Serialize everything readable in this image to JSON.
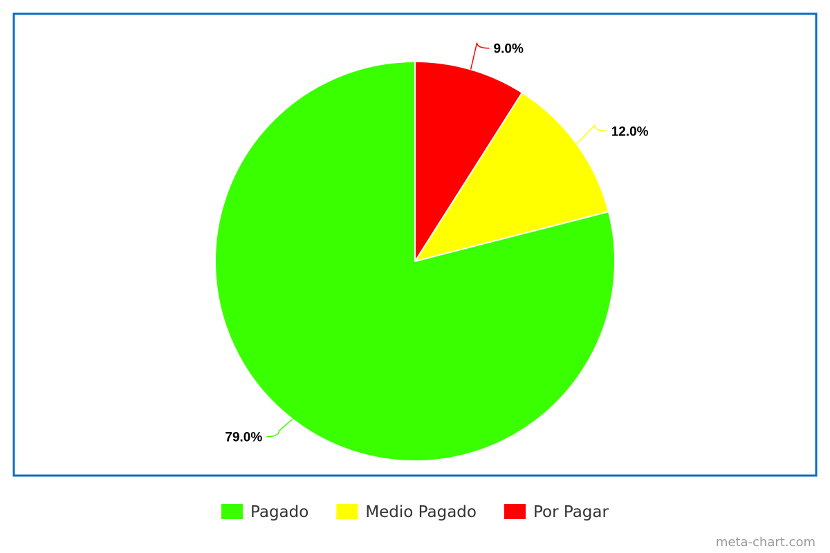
{
  "chart_data": {
    "type": "pie",
    "start_angle": "12 o'clock, clockwise",
    "slices": [
      {
        "label": "Pagado",
        "value": 79.0,
        "display": "79.0%",
        "color": "#3aff00"
      },
      {
        "label": "Medio Pagado",
        "value": 12.0,
        "display": "12.0%",
        "color": "#ffff00"
      },
      {
        "label": "Por Pagar",
        "value": 9.0,
        "display": "9.0%",
        "color": "#ff0000"
      }
    ],
    "legend_placement": "bottom-center"
  },
  "frame_color": "#0a6ebd",
  "watermark": "meta-chart.com"
}
